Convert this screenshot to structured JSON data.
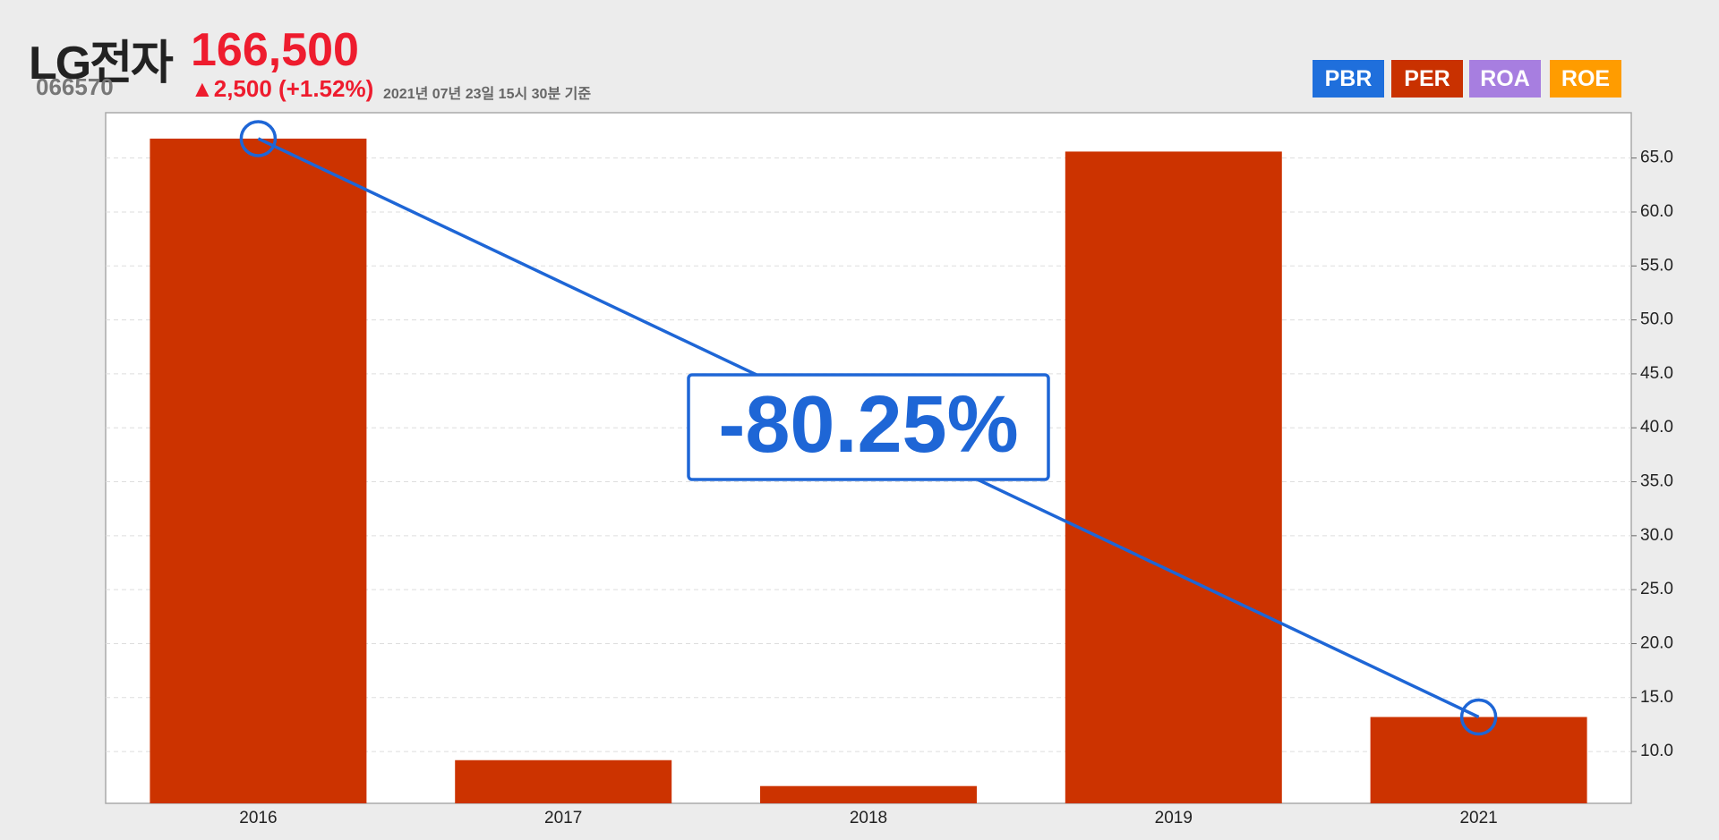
{
  "header": {
    "name": "LG전자",
    "code": "066570",
    "price": "166,500",
    "change": "▲2,500 (+1.52%)",
    "timestamp": "2021년 07년 23일 15시 30분 기준",
    "buttons": [
      {
        "label": "PBR",
        "color": "#1f6fdc"
      },
      {
        "label": "PER",
        "color": "#c93100"
      },
      {
        "label": "ROA",
        "color": "#a77ee0"
      },
      {
        "label": "ROE",
        "color": "#ff9c00"
      }
    ]
  },
  "chart_data": {
    "type": "bar",
    "categories": [
      "2016",
      "2017",
      "2018",
      "2019",
      "2021"
    ],
    "values": [
      66.8,
      9.2,
      6.8,
      65.6,
      13.2
    ],
    "color": "#cc3300",
    "ylim": [
      5.2,
      69.2
    ],
    "yticks": [
      {
        "value": 10,
        "label": "10.0"
      },
      {
        "value": 15,
        "label": "15.0"
      },
      {
        "value": 20,
        "label": "20.0"
      },
      {
        "value": 25,
        "label": "25.0"
      },
      {
        "value": 30,
        "label": "30.0"
      },
      {
        "value": 35,
        "label": "35.0"
      },
      {
        "value": 40,
        "label": "40.0"
      },
      {
        "value": 45,
        "label": "45.0"
      },
      {
        "value": 50,
        "label": "50.0"
      },
      {
        "value": 55,
        "label": "55.0"
      },
      {
        "value": 60,
        "label": "60.0"
      },
      {
        "value": 65,
        "label": "65.0"
      }
    ],
    "grid": true,
    "annotation": "-80.25%",
    "annotation_color": "#1e66d6"
  }
}
